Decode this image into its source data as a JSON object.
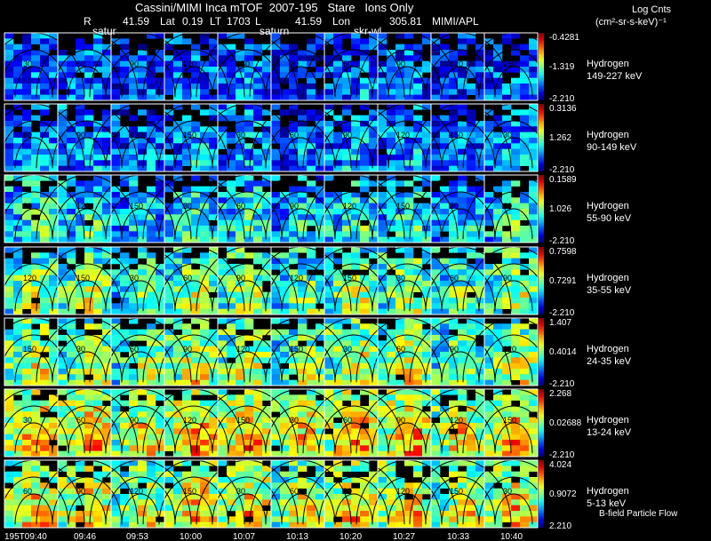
{
  "header": {
    "title": "Cassini/MIMI Inca mTOF  2007-195   Stare   Ions Only",
    "r_label": "R",
    "r_value": "41.59",
    "lat_label": "Lat",
    "lat_value": "0.19",
    "lt_label": "LT",
    "lt_value": "1703",
    "l_label": "L",
    "l_value": "41.59",
    "lon_label": "Lon",
    "lon_value": "305.81",
    "credit": "MIMI/APL",
    "markers": [
      "satur",
      "saturn",
      "skr-wl"
    ]
  },
  "units": {
    "line1": "Log Cnts",
    "line2": "(cm²-sr-s-keV)⁻¹"
  },
  "footer": {
    "flow_label": "B-field Particle Flow",
    "time_labels": [
      "195T09:40",
      "09:46",
      "09:53",
      "10:00",
      "10:07",
      "10:13",
      "10:20",
      "10:27",
      "10:33",
      "10:40"
    ]
  },
  "chart_data": {
    "type": "heatmap",
    "title": "Cassini/MIMI Inca mTOF  2007-195   Stare   Ions Only",
    "x_time_labels": [
      "195T09:40",
      "09:46",
      "09:53",
      "10:00",
      "10:07",
      "10:13",
      "10:20",
      "10:27",
      "10:33",
      "10:40"
    ],
    "contour_levels": [
      "30",
      "60",
      "90",
      "120",
      "150"
    ],
    "colorbar": "log counts (cm²-sr-s-keV)⁻¹",
    "panels": [
      {
        "species": "Hydrogen",
        "energy": "149-227 keV",
        "cmax": "-0.4281",
        "cmid": "-1.319",
        "cmin": "-2.210",
        "intensity": 0.25
      },
      {
        "species": "Hydrogen",
        "energy": "90-149 keV",
        "cmax": "0.3136",
        "cmid": "1.262",
        "cmin": "-2.210",
        "intensity": 0.3
      },
      {
        "species": "Hydrogen",
        "energy": "55-90 keV",
        "cmax": "0.1589",
        "cmid": "1.026",
        "cmin": "-2.210",
        "intensity": 0.42
      },
      {
        "species": "Hydrogen",
        "energy": "35-55 keV",
        "cmax": "0.7598",
        "cmid": "0.7291",
        "cmin": "-2.210",
        "intensity": 0.55
      },
      {
        "species": "Hydrogen",
        "energy": "24-35 keV",
        "cmax": "1.407",
        "cmid": "0.4014",
        "cmin": "-2.210",
        "intensity": 0.6
      },
      {
        "species": "Hydrogen",
        "energy": "13-24 keV",
        "cmax": "2.268",
        "cmid": "0.02688",
        "cmin": "-2.210",
        "intensity": 0.72
      },
      {
        "species": "Hydrogen",
        "energy": "5-13 keV",
        "cmax": "4.024",
        "cmid": "0.9072",
        "cmin": "2.210",
        "intensity": 0.68
      }
    ]
  }
}
